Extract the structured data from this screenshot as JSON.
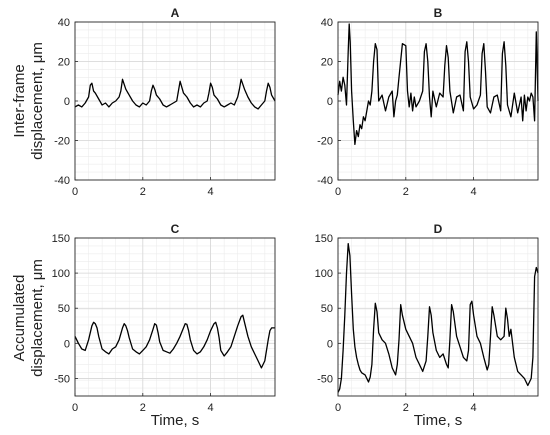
{
  "figure": {
    "ylabel_top": [
      "Inter-frame",
      "displacement, μm"
    ],
    "ylabel_bottom": [
      "Accumulated",
      "displacement, μm"
    ],
    "xlabel": "Time, s"
  },
  "chart_data": [
    {
      "type": "line",
      "title": "A",
      "xlabel": "",
      "ylabel": "Inter-frame displacement, μm",
      "xlim": [
        0,
        5.9
      ],
      "ylim": [
        -40,
        40
      ],
      "xticks": [
        0,
        2,
        4
      ],
      "yticks": [
        -40,
        -20,
        0,
        20,
        40
      ],
      "grid": true,
      "series": [
        {
          "x": [
            0,
            0.1,
            0.2,
            0.3,
            0.4,
            0.45,
            0.5,
            0.55,
            0.6,
            0.7,
            0.8,
            0.9,
            1.0,
            1.1,
            1.2,
            1.3,
            1.35,
            1.4,
            1.5,
            1.6,
            1.7,
            1.8,
            1.9,
            2.0,
            2.1,
            2.2,
            2.25,
            2.3,
            2.35,
            2.4,
            2.5,
            2.6,
            2.7,
            2.8,
            2.9,
            3.0,
            3.05,
            3.1,
            3.15,
            3.2,
            3.3,
            3.4,
            3.5,
            3.6,
            3.7,
            3.8,
            3.9,
            3.95,
            4.0,
            4.05,
            4.1,
            4.2,
            4.3,
            4.4,
            4.5,
            4.6,
            4.7,
            4.8,
            4.85,
            4.9,
            5.0,
            5.1,
            5.2,
            5.3,
            5.4,
            5.5,
            5.6,
            5.65,
            5.7,
            5.75,
            5.8,
            5.9
          ],
          "y": [
            -3,
            -2,
            -3,
            -1,
            2,
            8,
            9,
            5,
            4,
            1,
            -2,
            -1,
            -3,
            -1,
            0,
            2,
            5,
            11,
            6,
            3,
            0,
            -2,
            -3,
            -1,
            -2,
            0,
            5,
            8,
            6,
            3,
            1,
            -2,
            -3,
            -2,
            -1,
            0,
            5,
            10,
            7,
            4,
            2,
            -1,
            -3,
            -2,
            -3,
            -1,
            0,
            4,
            9,
            7,
            3,
            1,
            -2,
            -3,
            -2,
            -1,
            -2,
            2,
            6,
            11,
            6,
            2,
            -1,
            -3,
            -4,
            -2,
            0,
            5,
            9,
            7,
            3,
            0
          ]
        }
      ]
    },
    {
      "type": "line",
      "title": "B",
      "xlabel": "",
      "ylabel": "",
      "xlim": [
        0,
        5.9
      ],
      "ylim": [
        -40,
        40
      ],
      "xticks": [
        0,
        2,
        4
      ],
      "yticks": [
        -40,
        -20,
        0,
        20,
        40
      ],
      "grid": true,
      "series": [
        {
          "x": [
            0,
            0.05,
            0.1,
            0.15,
            0.2,
            0.25,
            0.3,
            0.33,
            0.36,
            0.4,
            0.45,
            0.5,
            0.55,
            0.6,
            0.65,
            0.7,
            0.75,
            0.8,
            0.85,
            0.9,
            0.95,
            1.0,
            1.05,
            1.1,
            1.15,
            1.2,
            1.3,
            1.4,
            1.5,
            1.6,
            1.65,
            1.7,
            1.75,
            1.8,
            1.9,
            2.0,
            2.05,
            2.1,
            2.15,
            2.2,
            2.25,
            2.3,
            2.4,
            2.5,
            2.55,
            2.6,
            2.65,
            2.7,
            2.75,
            2.8,
            2.9,
            3.0,
            3.1,
            3.15,
            3.2,
            3.25,
            3.3,
            3.4,
            3.5,
            3.6,
            3.7,
            3.75,
            3.8,
            3.85,
            3.9,
            4.0,
            4.1,
            4.2,
            4.25,
            4.3,
            4.35,
            4.4,
            4.5,
            4.6,
            4.7,
            4.8,
            4.85,
            4.9,
            4.95,
            5.0,
            5.1,
            5.2,
            5.3,
            5.4,
            5.45,
            5.5,
            5.55,
            5.6,
            5.65,
            5.7,
            5.75,
            5.8,
            5.85,
            5.9
          ],
          "y": [
            3,
            10,
            5,
            12,
            8,
            -2,
            25,
            39,
            30,
            5,
            -10,
            -22,
            -15,
            -18,
            -12,
            -14,
            -8,
            -10,
            -5,
            0,
            -2,
            5,
            20,
            29,
            26,
            0,
            3,
            -5,
            2,
            5,
            -8,
            0,
            3,
            12,
            29,
            28,
            5,
            -3,
            4,
            -5,
            2,
            -3,
            0,
            5,
            25,
            29,
            20,
            2,
            -8,
            5,
            -3,
            4,
            2,
            18,
            28,
            22,
            5,
            -6,
            2,
            3,
            -5,
            25,
            30,
            20,
            2,
            -4,
            -2,
            3,
            24,
            29,
            15,
            -3,
            -6,
            2,
            3,
            -5,
            24,
            30,
            18,
            -2,
            -8,
            4,
            -6,
            2,
            -10,
            3,
            -5,
            2,
            0,
            4,
            2,
            -10,
            35,
            0
          ]
        }
      ]
    },
    {
      "type": "line",
      "title": "C",
      "xlabel": "Time, s",
      "ylabel": "Accumulated displacement, μm",
      "xlim": [
        0,
        5.9
      ],
      "ylim": [
        -75,
        150
      ],
      "xticks": [
        0,
        2,
        4
      ],
      "yticks": [
        -50,
        0,
        50,
        100,
        150
      ],
      "grid": true,
      "series": [
        {
          "x": [
            0,
            0.05,
            0.1,
            0.2,
            0.3,
            0.4,
            0.5,
            0.55,
            0.6,
            0.65,
            0.7,
            0.8,
            0.9,
            1.0,
            1.1,
            1.2,
            1.3,
            1.4,
            1.45,
            1.5,
            1.55,
            1.6,
            1.7,
            1.8,
            1.9,
            2.0,
            2.1,
            2.2,
            2.3,
            2.35,
            2.4,
            2.45,
            2.5,
            2.6,
            2.7,
            2.8,
            2.9,
            3.0,
            3.1,
            3.2,
            3.25,
            3.3,
            3.35,
            3.4,
            3.5,
            3.6,
            3.7,
            3.8,
            3.9,
            4.0,
            4.1,
            4.15,
            4.2,
            4.25,
            4.3,
            4.4,
            4.5,
            4.6,
            4.7,
            4.8,
            4.9,
            4.95,
            5.0,
            5.05,
            5.1,
            5.2,
            5.3,
            5.4,
            5.5,
            5.6,
            5.65,
            5.7,
            5.75,
            5.8,
            5.9
          ],
          "y": [
            10,
            5,
            0,
            -8,
            -10,
            5,
            25,
            30,
            28,
            22,
            10,
            -8,
            -12,
            -15,
            -8,
            -5,
            5,
            22,
            28,
            25,
            18,
            8,
            -8,
            -12,
            -15,
            -10,
            -5,
            5,
            20,
            28,
            26,
            15,
            2,
            -10,
            -12,
            -14,
            -8,
            0,
            10,
            22,
            28,
            27,
            18,
            5,
            -10,
            -15,
            -12,
            -5,
            5,
            18,
            28,
            30,
            22,
            8,
            -10,
            -18,
            -12,
            -5,
            10,
            25,
            38,
            40,
            30,
            20,
            10,
            -5,
            -15,
            -25,
            -35,
            -25,
            -10,
            5,
            18,
            22,
            22
          ]
        }
      ]
    },
    {
      "type": "line",
      "title": "D",
      "xlabel": "Time, s",
      "ylabel": "",
      "xlim": [
        0,
        5.9
      ],
      "ylim": [
        -75,
        150
      ],
      "xticks": [
        0,
        2,
        4
      ],
      "yticks": [
        -50,
        0,
        50,
        100,
        150
      ],
      "grid": true,
      "series": [
        {
          "x": [
            0,
            0.05,
            0.1,
            0.15,
            0.2,
            0.25,
            0.3,
            0.35,
            0.4,
            0.45,
            0.5,
            0.55,
            0.6,
            0.65,
            0.7,
            0.8,
            0.9,
            0.95,
            1.0,
            1.05,
            1.1,
            1.15,
            1.2,
            1.3,
            1.4,
            1.5,
            1.6,
            1.7,
            1.75,
            1.8,
            1.85,
            1.9,
            2.0,
            2.1,
            2.2,
            2.3,
            2.4,
            2.5,
            2.6,
            2.65,
            2.7,
            2.75,
            2.8,
            2.9,
            3.0,
            3.1,
            3.2,
            3.25,
            3.3,
            3.35,
            3.4,
            3.5,
            3.6,
            3.7,
            3.8,
            3.85,
            3.9,
            3.95,
            4.0,
            4.1,
            4.2,
            4.3,
            4.4,
            4.45,
            4.5,
            4.55,
            4.6,
            4.7,
            4.8,
            4.9,
            4.95,
            5.0,
            5.05,
            5.1,
            5.2,
            5.3,
            5.4,
            5.5,
            5.6,
            5.65,
            5.7,
            5.75,
            5.8,
            5.85,
            5.9
          ],
          "y": [
            -70,
            -65,
            -50,
            -10,
            40,
            100,
            142,
            125,
            70,
            20,
            -5,
            -20,
            -30,
            -38,
            -42,
            -45,
            -55,
            -48,
            -30,
            20,
            57,
            45,
            15,
            5,
            0,
            -15,
            -35,
            -45,
            -30,
            5,
            55,
            40,
            20,
            10,
            0,
            -20,
            -30,
            -40,
            -25,
            10,
            52,
            40,
            15,
            -10,
            -20,
            -15,
            -30,
            -35,
            5,
            55,
            45,
            10,
            -5,
            -20,
            -25,
            -10,
            55,
            60,
            40,
            10,
            0,
            -20,
            -38,
            -30,
            10,
            52,
            40,
            10,
            5,
            10,
            50,
            35,
            10,
            20,
            -20,
            -40,
            -45,
            -50,
            -60,
            -55,
            -50,
            -20,
            95,
            108,
            100
          ]
        }
      ]
    }
  ]
}
